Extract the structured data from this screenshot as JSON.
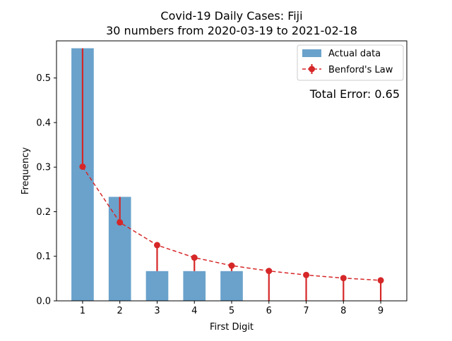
{
  "chart_data": {
    "type": "bar",
    "title_line1": "Covid-19 Daily Cases: Fiji",
    "title_line2": "30 numbers from 2020-03-19 to 2021-02-18",
    "xlabel": "First Digit",
    "ylabel": "Frequency",
    "categories": [
      1,
      2,
      3,
      4,
      5,
      6,
      7,
      8,
      9
    ],
    "x_tick_labels": [
      "1",
      "2",
      "3",
      "4",
      "5",
      "6",
      "7",
      "8",
      "9"
    ],
    "y_ticks": [
      0.0,
      0.1,
      0.2,
      0.3,
      0.4,
      0.5
    ],
    "y_tick_labels": [
      "0.0",
      "0.1",
      "0.2",
      "0.3",
      "0.4",
      "0.5"
    ],
    "xlim": [
      0.3,
      9.7
    ],
    "ylim": [
      0,
      0.5833
    ],
    "grid": false,
    "legend_position": "top-right",
    "series": [
      {
        "name": "Actual data",
        "type": "bar",
        "values": [
          0.5667,
          0.2333,
          0.0667,
          0.0667,
          0.0667,
          0.0,
          0.0,
          0.0,
          0.0
        ],
        "color": "#6aa2cb"
      },
      {
        "name": "Benford's Law",
        "type": "line",
        "values": [
          0.301,
          0.176,
          0.125,
          0.097,
          0.079,
          0.067,
          0.058,
          0.051,
          0.046
        ],
        "color": "#d62728"
      }
    ],
    "annotation": {
      "text": "Total Error: 0.65",
      "color": "#d62728"
    }
  }
}
